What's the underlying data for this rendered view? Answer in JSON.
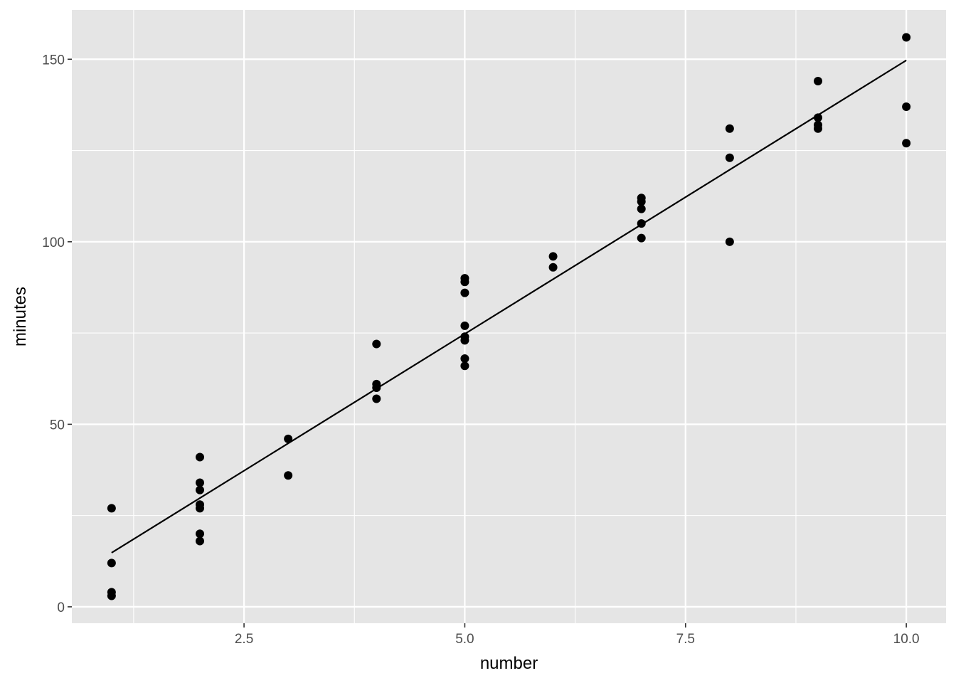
{
  "chart_data": {
    "type": "scatter",
    "title": "",
    "xlabel": "number",
    "ylabel": "minutes",
    "xlim": [
      0.55,
      10.45
    ],
    "ylim": [
      -4.5,
      163.5
    ],
    "x_ticks": [
      2.5,
      5.0,
      7.5,
      10.0
    ],
    "x_tick_labels": [
      "2.5",
      "5.0",
      "7.5",
      "10.0"
    ],
    "x_minor_ticks": [
      1.25,
      3.75,
      6.25,
      8.75
    ],
    "y_ticks": [
      0,
      50,
      100,
      150
    ],
    "y_tick_labels": [
      "0",
      "50",
      "100",
      "150"
    ],
    "y_minor_ticks": [
      25,
      75,
      125
    ],
    "grid": true,
    "legend": "none",
    "colors": {
      "panel": "#e5e5e5",
      "grid": "#ffffff",
      "point": "#000000",
      "line": "#000000",
      "tick_label": "#4d4d4d"
    },
    "points": [
      {
        "x": 1,
        "y": 27
      },
      {
        "x": 1,
        "y": 12
      },
      {
        "x": 1,
        "y": 4
      },
      {
        "x": 1,
        "y": 3
      },
      {
        "x": 2,
        "y": 41
      },
      {
        "x": 2,
        "y": 34
      },
      {
        "x": 2,
        "y": 32
      },
      {
        "x": 2,
        "y": 28
      },
      {
        "x": 2,
        "y": 27
      },
      {
        "x": 2,
        "y": 20
      },
      {
        "x": 2,
        "y": 18
      },
      {
        "x": 3,
        "y": 46
      },
      {
        "x": 3,
        "y": 36
      },
      {
        "x": 4,
        "y": 72
      },
      {
        "x": 4,
        "y": 61
      },
      {
        "x": 4,
        "y": 60
      },
      {
        "x": 4,
        "y": 57
      },
      {
        "x": 5,
        "y": 90
      },
      {
        "x": 5,
        "y": 89
      },
      {
        "x": 5,
        "y": 86
      },
      {
        "x": 5,
        "y": 77
      },
      {
        "x": 5,
        "y": 74
      },
      {
        "x": 5,
        "y": 73
      },
      {
        "x": 5,
        "y": 68
      },
      {
        "x": 5,
        "y": 66
      },
      {
        "x": 6,
        "y": 96
      },
      {
        "x": 6,
        "y": 93
      },
      {
        "x": 7,
        "y": 112
      },
      {
        "x": 7,
        "y": 111
      },
      {
        "x": 7,
        "y": 109
      },
      {
        "x": 7,
        "y": 105
      },
      {
        "x": 7,
        "y": 101
      },
      {
        "x": 8,
        "y": 131
      },
      {
        "x": 8,
        "y": 123
      },
      {
        "x": 8,
        "y": 100
      },
      {
        "x": 9,
        "y": 144
      },
      {
        "x": 9,
        "y": 134
      },
      {
        "x": 9,
        "y": 132
      },
      {
        "x": 9,
        "y": 131
      },
      {
        "x": 10,
        "y": 156
      },
      {
        "x": 10,
        "y": 137
      },
      {
        "x": 10,
        "y": 127
      }
    ],
    "fit_line": {
      "x": [
        1,
        10
      ],
      "y": [
        14.8,
        149.7
      ]
    }
  }
}
